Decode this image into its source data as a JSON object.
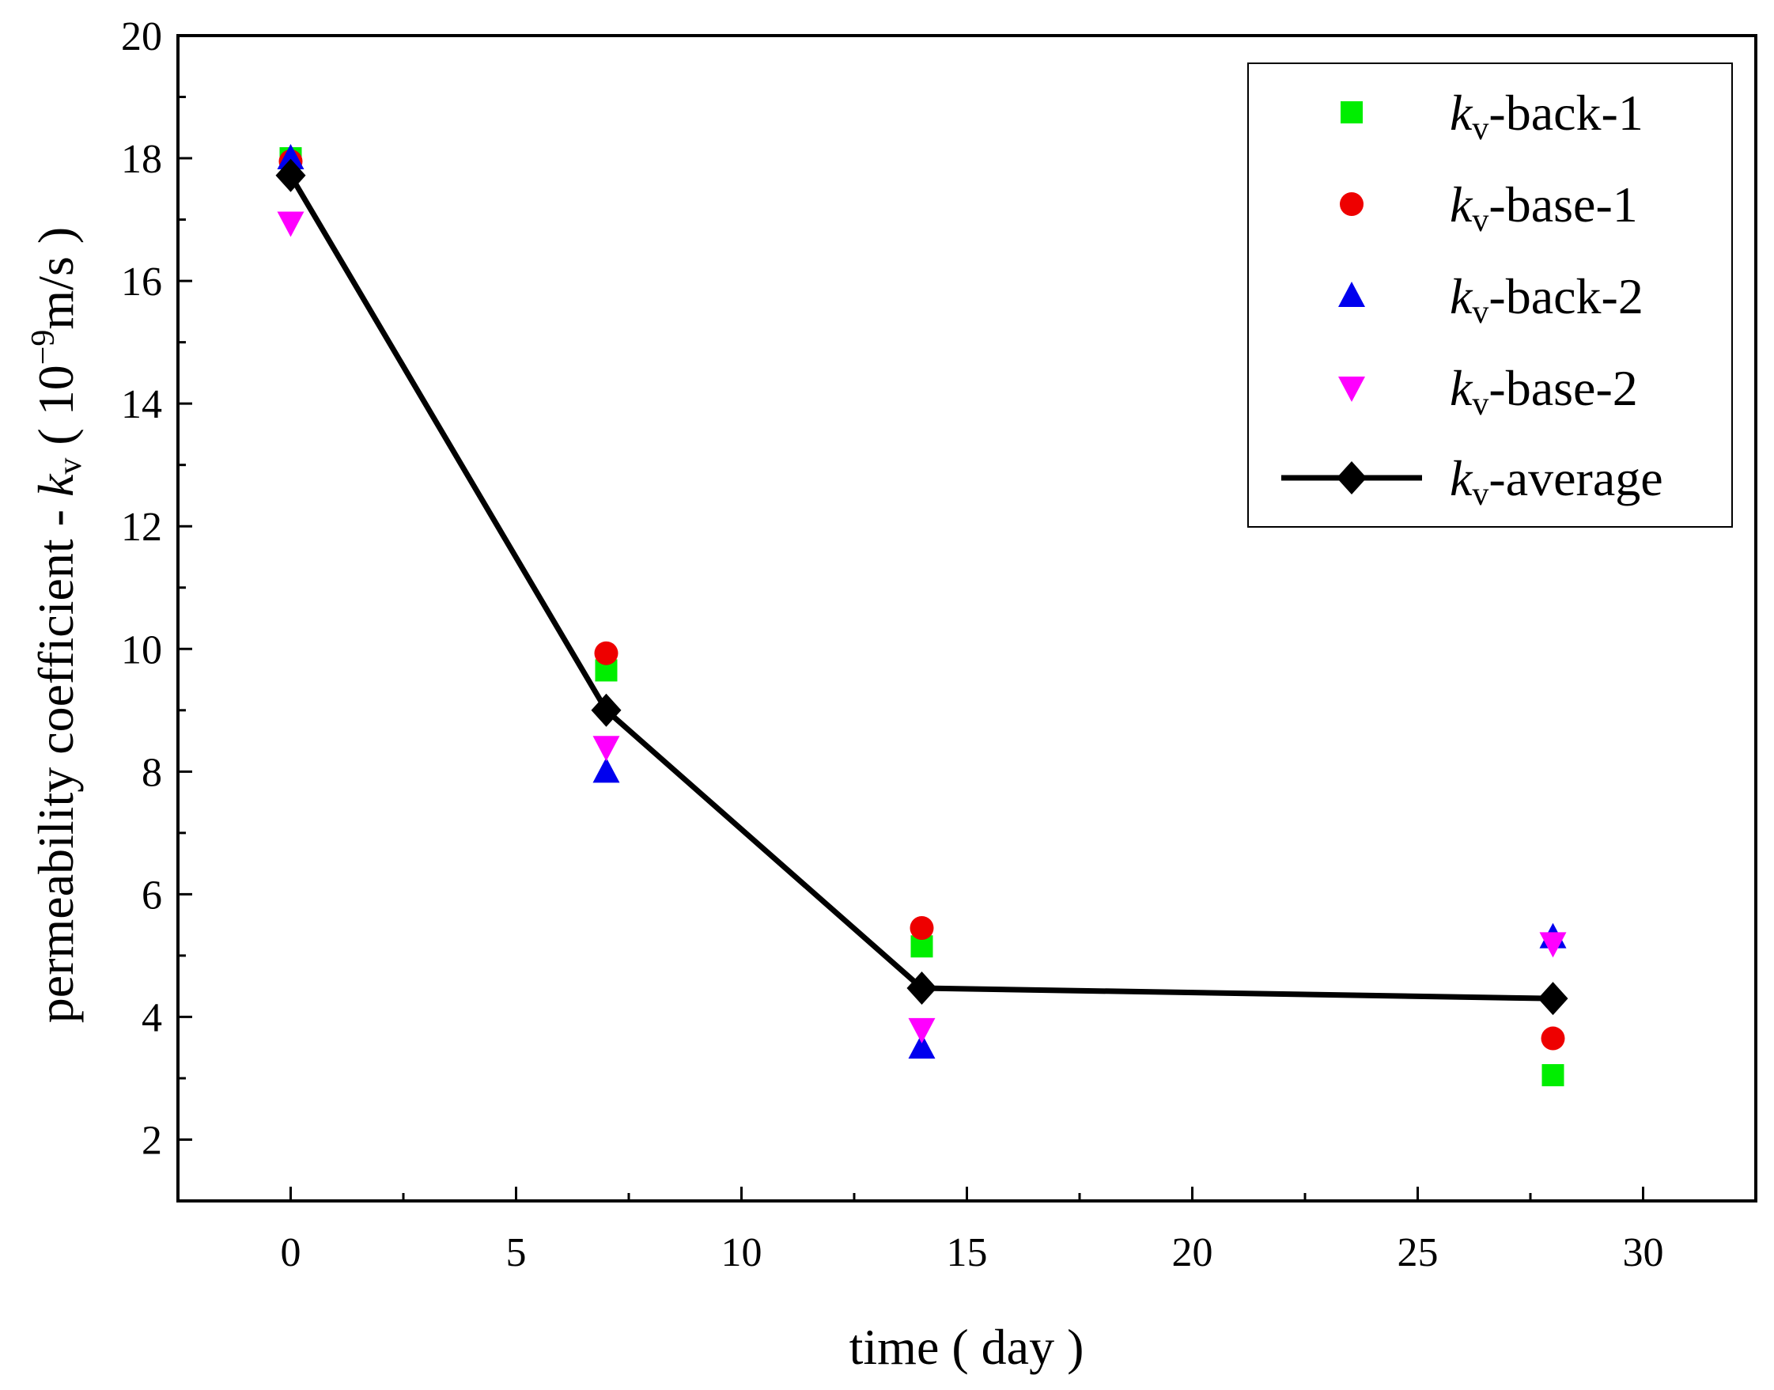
{
  "chart_data": {
    "type": "scatter",
    "xlabel": "time ( day )",
    "ylabel_prefix": "permeability coefficient - ",
    "ylabel_var": "k",
    "ylabel_sub": "v",
    "ylabel_unit_open": " ( 10",
    "ylabel_unit_exp": "−9",
    "ylabel_unit_close": "m/s )",
    "xlim": [
      -2.5,
      32.5
    ],
    "ylim": [
      1,
      20
    ],
    "xticks": [
      0,
      5,
      10,
      15,
      20,
      25,
      30
    ],
    "yticks": [
      2,
      4,
      6,
      8,
      10,
      12,
      14,
      16,
      18,
      20
    ],
    "series": [
      {
        "name": "-back-1",
        "var": "k",
        "sub": "v",
        "marker": "square",
        "color": "#00ee00",
        "x": [
          0,
          7,
          14,
          28
        ],
        "y": [
          18.0,
          9.65,
          5.15,
          3.05
        ]
      },
      {
        "name": "-base-1",
        "var": "k",
        "sub": "v",
        "marker": "circle",
        "color": "#ee0000",
        "x": [
          0,
          7,
          14,
          28
        ],
        "y": [
          17.95,
          9.93,
          5.45,
          3.65
        ]
      },
      {
        "name": "-back-2",
        "var": "k",
        "sub": "v",
        "marker": "triangle-up",
        "color": "#0000ee",
        "x": [
          0,
          7,
          14,
          28
        ],
        "y": [
          18.0,
          8.0,
          3.5,
          5.3
        ]
      },
      {
        "name": "-base-2",
        "var": "k",
        "sub": "v",
        "marker": "triangle-down",
        "color": "#ff00ff",
        "x": [
          0,
          7,
          14,
          28
        ],
        "y": [
          16.95,
          8.4,
          3.8,
          5.2
        ]
      },
      {
        "name": "-average",
        "var": "k",
        "sub": "v",
        "marker": "diamond",
        "color": "#000000",
        "line": true,
        "x": [
          0,
          7,
          14,
          28
        ],
        "y": [
          17.72,
          9.0,
          4.47,
          4.3
        ]
      }
    ],
    "legend_position": "top-right"
  }
}
